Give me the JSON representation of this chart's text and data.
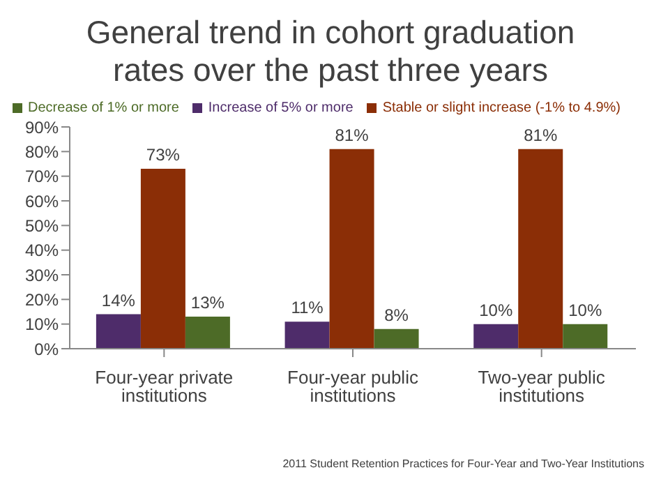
{
  "chart_data": {
    "type": "bar",
    "title": "General trend in cohort graduation rates over the past three years",
    "categories": [
      "Four-year private institutions",
      "Four-year public institutions",
      "Two-year public institutions"
    ],
    "series": [
      {
        "name": "Increase of 5% or more",
        "color": "#4e2c6a",
        "values": [
          14,
          11,
          10
        ],
        "value_labels": [
          "14%",
          "11%",
          "10%"
        ]
      },
      {
        "name": "Stable or slight increase (-1% to 4.9%)",
        "color": "#8b2e06",
        "values": [
          73,
          81,
          81
        ],
        "value_labels": [
          "73%",
          "81%",
          "81%"
        ]
      },
      {
        "name": "Decrease of 1% or more",
        "color": "#4d6b27",
        "values": [
          13,
          8,
          10
        ],
        "value_labels": [
          "13%",
          "8%",
          "10%"
        ]
      }
    ],
    "ylim": [
      0,
      90
    ],
    "yticks": [
      {
        "value": 0,
        "label": "0%"
      },
      {
        "value": 10,
        "label": "10%"
      },
      {
        "value": 20,
        "label": "20%"
      },
      {
        "value": 30,
        "label": "30%"
      },
      {
        "value": 40,
        "label": "40%"
      },
      {
        "value": 50,
        "label": "50%"
      },
      {
        "value": 60,
        "label": "60%"
      },
      {
        "value": 70,
        "label": "70%"
      },
      {
        "value": 80,
        "label": "80%"
      },
      {
        "value": 90,
        "label": "90%"
      }
    ],
    "legend": "top",
    "grid": false,
    "annotations": [
      "2011 Student Retention Practices for Four-Year and Two-Year Institutions"
    ]
  }
}
